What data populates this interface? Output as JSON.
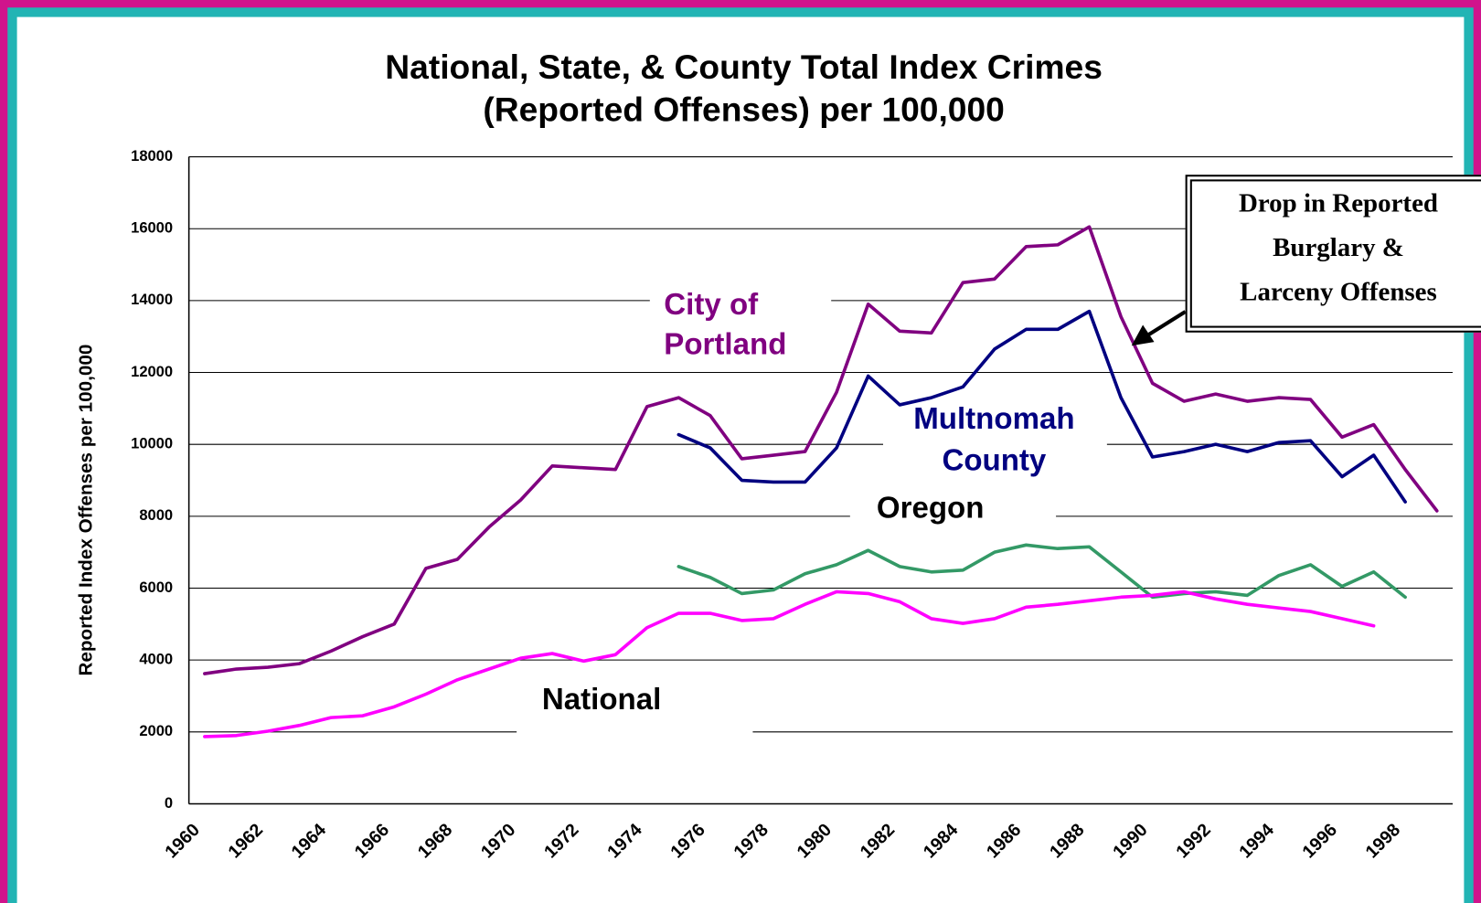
{
  "chart_data": {
    "type": "line",
    "title": "National, State, & County Total Index Crimes",
    "subtitle": "(Reported Offenses) per 100,000",
    "y_label": "Reported Index Offenses per 100,000",
    "categories": [
      "1960",
      null,
      "1962",
      null,
      "1964",
      null,
      "1966",
      null,
      "1968",
      null,
      "1970",
      null,
      "1972",
      null,
      "1974",
      null,
      "1976",
      null,
      "1978",
      null,
      "1980",
      null,
      "1982",
      null,
      "1984",
      null,
      "1986",
      null,
      "1988",
      null,
      "1990",
      null,
      "1992",
      null,
      "1994",
      null,
      "1996",
      null,
      "1998",
      null
    ],
    "series": [
      {
        "name": "City of Portland",
        "color": "#800080",
        "values": [
          3620,
          3750,
          3800,
          3900,
          4250,
          4650,
          5000,
          6550,
          6800,
          7700,
          8450,
          9400,
          9350,
          9300,
          11050,
          11300,
          10800,
          9600,
          9700,
          9800,
          11450,
          13900,
          13150,
          13100,
          14500,
          14600,
          15500,
          15550,
          16050,
          13550,
          11700,
          11200,
          11400,
          11200,
          11300,
          11250,
          10200,
          10550,
          9300,
          8150
        ]
      },
      {
        "name": "Multnomah County",
        "color": "#000080",
        "values": [
          null,
          null,
          null,
          null,
          null,
          null,
          null,
          null,
          null,
          null,
          null,
          null,
          null,
          null,
          null,
          10270,
          9900,
          9000,
          8950,
          8950,
          9900,
          11900,
          11100,
          11300,
          11600,
          12650,
          13200,
          13200,
          13700,
          11300,
          9650,
          9800,
          10000,
          9800,
          10050,
          10100,
          9100,
          9700,
          8400,
          null
        ]
      },
      {
        "name": "Oregon",
        "color": "#339966",
        "values": [
          null,
          null,
          null,
          null,
          null,
          null,
          null,
          null,
          null,
          null,
          null,
          null,
          null,
          null,
          null,
          6600,
          6300,
          5850,
          5950,
          6400,
          6650,
          7050,
          6600,
          6450,
          6500,
          7000,
          7200,
          7100,
          7150,
          6450,
          5750,
          5850,
          5900,
          5800,
          6350,
          6650,
          6050,
          6450,
          5750,
          null
        ]
      },
      {
        "name": "National",
        "color": "#ff00ff",
        "values": [
          1870,
          1900,
          2020,
          2180,
          2400,
          2450,
          2700,
          3050,
          3450,
          3750,
          4050,
          4180,
          3970,
          4150,
          4900,
          5300,
          5300,
          5100,
          5150,
          5550,
          5900,
          5850,
          5620,
          5150,
          5020,
          5150,
          5470,
          5550,
          5650,
          5750,
          5800,
          5900,
          5700,
          5550,
          5450,
          5350,
          5150,
          4950,
          null,
          null
        ]
      }
    ],
    "annotation": {
      "lines": [
        "Drop in Reported",
        "Burglary &",
        "Larceny Offenses"
      ]
    },
    "ylim": [
      0,
      18000
    ],
    "yticks": [
      0,
      2000,
      4000,
      6000,
      8000,
      10000,
      12000,
      14000,
      16000,
      18000
    ],
    "grid": true
  }
}
